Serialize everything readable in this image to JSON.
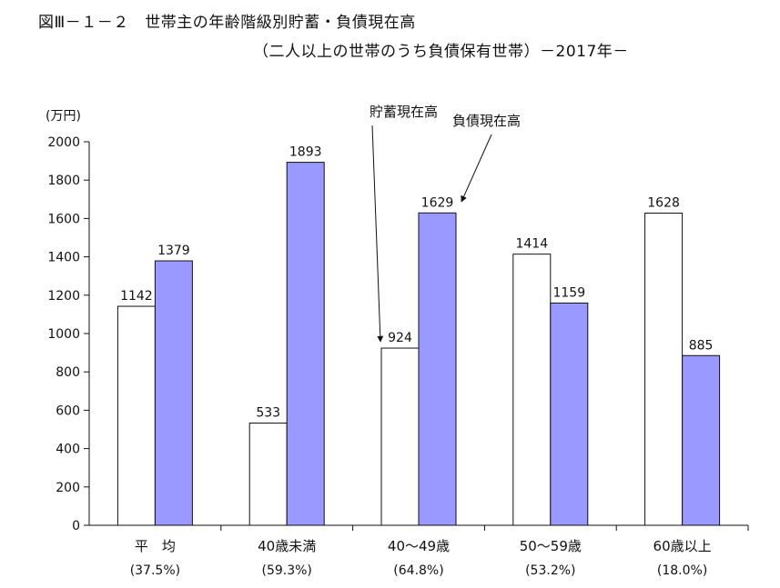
{
  "chart_data": {
    "type": "bar",
    "title": "図Ⅲ－１－２　世帯主の年齢階級別貯蓄・負債現在高",
    "subtitle": "（二人以上の世帯のうち負債保有世帯）－2017年－",
    "ylabel": "(万円)",
    "ylim": [
      0,
      2000
    ],
    "yticks": [
      "0",
      "200",
      "400",
      "600",
      "800",
      "1000",
      "1200",
      "1400",
      "1600",
      "1800",
      "2000"
    ],
    "categories": [
      "平　均",
      "40歳未満",
      "40～49歳",
      "50～59歳",
      "60歳以上"
    ],
    "category_sub": [
      "(37.5%)",
      "(59.3%)",
      "(64.8%)",
      "(53.2%)",
      "(18.0%)"
    ],
    "series": [
      {
        "name": "貯蓄現在高",
        "values": [
          1142,
          533,
          924,
          1414,
          1628
        ],
        "color": "#ffffff"
      },
      {
        "name": "負債現在高",
        "values": [
          1379,
          1893,
          1629,
          1159,
          885
        ],
        "color": "#9999ff"
      }
    ],
    "grid": false,
    "legend": "annotations with arrows near 40～49歳"
  }
}
